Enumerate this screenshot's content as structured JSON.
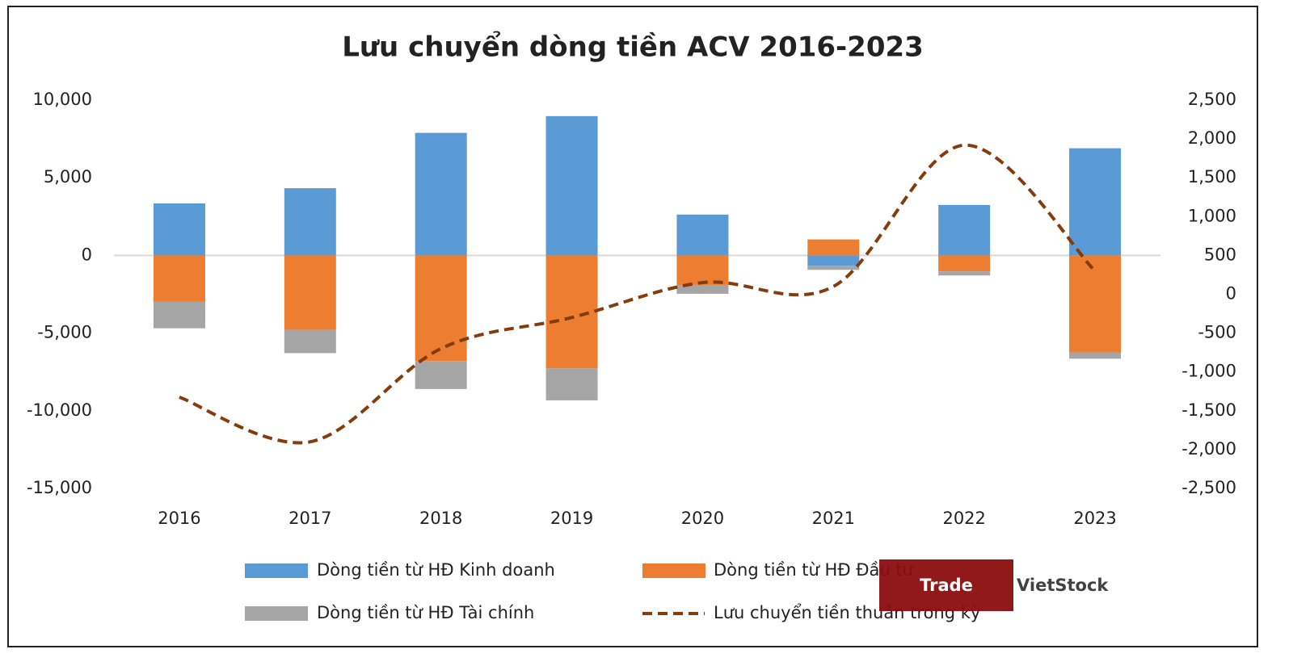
{
  "chart_data": {
    "type": "bar",
    "stacked": true,
    "title": "Lưu chuyển dòng tiền ACV 2016-2023",
    "categories": [
      "2016",
      "2017",
      "2018",
      "2019",
      "2020",
      "2021",
      "2022",
      "2023"
    ],
    "series": [
      {
        "name": "Dòng tiền từ HĐ Kinh doanh",
        "color": "#5b9bd5",
        "type": "bar",
        "values": [
          3350,
          4330,
          7890,
          8970,
          2630,
          -670,
          3250,
          6900
        ]
      },
      {
        "name": "Dòng tiền từ HĐ Đầu tư",
        "color": "#ed7d31",
        "type": "bar",
        "values": [
          -2990,
          -4790,
          -6800,
          -7270,
          -1900,
          1030,
          -1030,
          -6240
        ]
      },
      {
        "name": "Dòng tiền từ HĐ Tài chính",
        "color": "#a5a5a5",
        "type": "bar",
        "values": [
          -1700,
          -1500,
          -1800,
          -2060,
          -570,
          -260,
          -260,
          -410
        ]
      },
      {
        "name": "Lưu chuyển tiền thuần trong kỳ",
        "color": "#843c0c",
        "type": "line",
        "axis": "y2",
        "values": [
          -1325,
          -1900,
          -700,
          -300,
          150,
          100,
          1920,
          300
        ]
      }
    ],
    "ylim": [
      -15000,
      10000
    ],
    "yticks": [
      {
        "value": -15000,
        "label": "-15,000"
      },
      {
        "value": -10000,
        "label": "-10,000"
      },
      {
        "value": -5000,
        "label": "-5,000"
      },
      0,
      {
        "value": 5000,
        "label": "5,000"
      },
      {
        "value": 10000,
        "label": "10,000"
      }
    ],
    "y2lim": [
      -2500,
      2500
    ],
    "y2ticks": [
      {
        "value": -2500,
        "label": "-2,500"
      },
      {
        "value": -2000,
        "label": "-2,000"
      },
      {
        "value": -1500,
        "label": "-1,500"
      },
      {
        "value": -1000,
        "label": "-1,000"
      },
      -500,
      0,
      500,
      {
        "value": 1000,
        "label": "1,000"
      },
      {
        "value": 1500,
        "label": "1,500"
      },
      {
        "value": 2000,
        "label": "2,000"
      },
      {
        "value": 2500,
        "label": "2,500"
      }
    ],
    "zero_line": true,
    "watermark": [
      "Trade",
      "VietStock"
    ]
  }
}
